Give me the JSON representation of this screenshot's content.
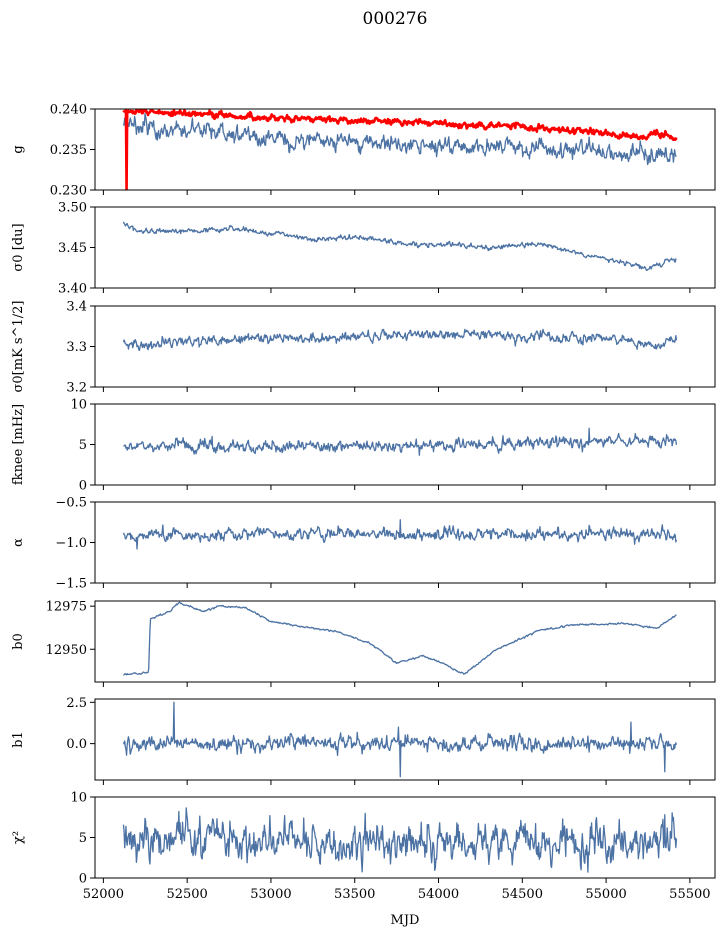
{
  "figure": {
    "title": "000276",
    "xlabel": "MJD",
    "x_range": [
      51950,
      55650
    ],
    "x_ticks": [
      52000,
      52500,
      53000,
      53500,
      54000,
      54500,
      55000,
      55500
    ],
    "line_color": "#4c72a4",
    "secondary_color": "#ff0000"
  },
  "chart_data": [
    {
      "id": "g",
      "type": "line",
      "ylabel": "g",
      "ylim": [
        0.23,
        0.24
      ],
      "yticks": [
        0.23,
        0.235,
        0.24
      ],
      "ytick_labels": [
        "0.230",
        "0.235",
        "0.240"
      ],
      "x_start": 52120,
      "x_end": 55420,
      "series": [
        {
          "color": "#4c72a4",
          "width": 1.3,
          "noise": 0.0005,
          "anchors": [
            [
              52120,
              0.2382
            ],
            [
              52300,
              0.2375
            ],
            [
              52600,
              0.2373
            ],
            [
              52900,
              0.2366
            ],
            [
              53200,
              0.236
            ],
            [
              53500,
              0.236
            ],
            [
              53800,
              0.2355
            ],
            [
              54100,
              0.2353
            ],
            [
              54400,
              0.2353
            ],
            [
              54700,
              0.235
            ],
            [
              55000,
              0.2347
            ],
            [
              55200,
              0.2343
            ],
            [
              55420,
              0.2345
            ]
          ],
          "spikes": []
        },
        {
          "color": "#ff0000",
          "width": 2.6,
          "noise": 0.00018,
          "anchors": [
            [
              52120,
              0.2398
            ],
            [
              52400,
              0.2395
            ],
            [
              52700,
              0.2393
            ],
            [
              53000,
              0.2388
            ],
            [
              53300,
              0.2388
            ],
            [
              53600,
              0.2385
            ],
            [
              53900,
              0.2383
            ],
            [
              54200,
              0.238
            ],
            [
              54500,
              0.2378
            ],
            [
              54800,
              0.2373
            ],
            [
              55000,
              0.237
            ],
            [
              55200,
              0.2365
            ],
            [
              55300,
              0.2372
            ],
            [
              55420,
              0.2363
            ]
          ],
          "spikes": [
            [
              52140,
              0.2301
            ]
          ]
        }
      ]
    },
    {
      "id": "sigma0_du",
      "type": "line",
      "ylabel": "σ0 [du]",
      "ylim": [
        3.4,
        3.5
      ],
      "yticks": [
        3.4,
        3.45,
        3.5
      ],
      "ytick_labels": [
        "3.40",
        "3.45",
        "3.50"
      ],
      "x_start": 52120,
      "x_end": 55420,
      "series": [
        {
          "color": "#4c72a4",
          "width": 1.3,
          "noise": 0.0015,
          "anchors": [
            [
              52120,
              3.482
            ],
            [
              52200,
              3.47
            ],
            [
              52500,
              3.47
            ],
            [
              52800,
              3.473
            ],
            [
              53000,
              3.467
            ],
            [
              53300,
              3.46
            ],
            [
              53500,
              3.463
            ],
            [
              53800,
              3.455
            ],
            [
              54100,
              3.453
            ],
            [
              54300,
              3.45
            ],
            [
              54600,
              3.455
            ],
            [
              54800,
              3.445
            ],
            [
              55100,
              3.432
            ],
            [
              55250,
              3.425
            ],
            [
              55420,
              3.437
            ]
          ],
          "spikes": []
        }
      ]
    },
    {
      "id": "sigma0_mk",
      "type": "line",
      "ylabel": "σ0[mK s^1/2]",
      "ylim": [
        3.2,
        3.4
      ],
      "yticks": [
        3.2,
        3.3,
        3.4
      ],
      "ytick_labels": [
        "3.2",
        "3.3",
        "3.4"
      ],
      "x_start": 52120,
      "x_end": 55420,
      "series": [
        {
          "color": "#4c72a4",
          "width": 1.3,
          "noise": 0.006,
          "anchors": [
            [
              52120,
              3.31
            ],
            [
              52200,
              3.305
            ],
            [
              52600,
              3.315
            ],
            [
              53000,
              3.32
            ],
            [
              53500,
              3.325
            ],
            [
              54000,
              3.33
            ],
            [
              54500,
              3.325
            ],
            [
              55000,
              3.32
            ],
            [
              55300,
              3.3
            ],
            [
              55420,
              3.32
            ]
          ],
          "spikes": []
        }
      ]
    },
    {
      "id": "fknee",
      "type": "line",
      "ylabel": "fknee [mHz]",
      "ylim": [
        0,
        10
      ],
      "yticks": [
        0,
        5,
        10
      ],
      "ytick_labels": [
        "0",
        "5",
        "10"
      ],
      "x_start": 52120,
      "x_end": 55420,
      "series": [
        {
          "color": "#4c72a4",
          "width": 1.3,
          "noise": 0.35,
          "anchors": [
            [
              52120,
              4.7
            ],
            [
              53000,
              4.7
            ],
            [
              54000,
              4.8
            ],
            [
              54500,
              5.2
            ],
            [
              55000,
              5.5
            ],
            [
              55420,
              5.5
            ]
          ],
          "spikes": [
            [
              54900,
              7.0
            ],
            [
              52650,
              6.0
            ]
          ]
        }
      ]
    },
    {
      "id": "alpha",
      "type": "line",
      "ylabel": "α",
      "ylim": [
        -1.5,
        -0.5
      ],
      "yticks": [
        -1.5,
        -1.0,
        -0.5
      ],
      "ytick_labels": [
        "−1.5",
        "−1.0",
        "−0.5"
      ],
      "x_start": 52120,
      "x_end": 55420,
      "series": [
        {
          "color": "#4c72a4",
          "width": 1.3,
          "noise": 0.035,
          "anchors": [
            [
              52120,
              -0.9
            ],
            [
              55420,
              -0.9
            ]
          ],
          "spikes": [
            [
              53770,
              -0.72
            ],
            [
              52200,
              -1.08
            ]
          ]
        }
      ]
    },
    {
      "id": "b0",
      "type": "line",
      "ylabel": "b0",
      "ylim": [
        12931,
        12978
      ],
      "yticks": [
        12950,
        12975
      ],
      "ytick_labels": [
        "12950",
        "12975"
      ],
      "x_start": 52120,
      "x_end": 55420,
      "series": [
        {
          "color": "#4c72a4",
          "width": 1.3,
          "noise": 0.25,
          "anchors": [
            [
              52120,
              12935
            ],
            [
              52270,
              12936.5
            ],
            [
              52280,
              12968
            ],
            [
              52400,
              12972
            ],
            [
              52450,
              12977
            ],
            [
              52600,
              12972
            ],
            [
              52700,
              12975
            ],
            [
              52850,
              12974
            ],
            [
              53000,
              12966
            ],
            [
              53200,
              12963
            ],
            [
              53400,
              12960
            ],
            [
              53600,
              12953
            ],
            [
              53750,
              12942
            ],
            [
              53900,
              12946
            ],
            [
              54000,
              12943
            ],
            [
              54150,
              12935.5
            ],
            [
              54350,
              12950
            ],
            [
              54600,
              12961
            ],
            [
              54800,
              12964
            ],
            [
              55100,
              12965
            ],
            [
              55300,
              12962
            ],
            [
              55420,
              12970
            ]
          ],
          "spikes": []
        }
      ]
    },
    {
      "id": "b1",
      "type": "line",
      "ylabel": "b1",
      "ylim": [
        -2.2,
        2.7
      ],
      "yticks": [
        0.0,
        2.5
      ],
      "ytick_labels": [
        "0.0",
        "2.5"
      ],
      "x_start": 52120,
      "x_end": 55420,
      "series": [
        {
          "color": "#4c72a4",
          "width": 1.3,
          "noise": 0.22,
          "anchors": [
            [
              52120,
              0.0
            ],
            [
              55420,
              0.0
            ]
          ],
          "spikes": [
            [
              52420,
              2.5
            ],
            [
              53770,
              -2.0
            ],
            [
              53760,
              1.0
            ],
            [
              55150,
              1.3
            ],
            [
              55350,
              -1.7
            ],
            [
              52140,
              -0.7
            ]
          ]
        }
      ]
    },
    {
      "id": "chi2",
      "type": "line",
      "ylabel": "χ²",
      "ylim": [
        0,
        10
      ],
      "yticks": [
        0,
        5,
        10
      ],
      "ytick_labels": [
        "0",
        "5",
        "10"
      ],
      "x_start": 52120,
      "x_end": 55420,
      "series": [
        {
          "color": "#4c72a4",
          "width": 1.3,
          "noise": 1.1,
          "anchors": [
            [
              52120,
              4.5
            ],
            [
              52500,
              5.0
            ],
            [
              53000,
              4.5
            ],
            [
              53500,
              4.2
            ],
            [
              54000,
              4.5
            ],
            [
              54500,
              4.5
            ],
            [
              55000,
              4.5
            ],
            [
              55420,
              5.0
            ]
          ],
          "spikes": [
            [
              52450,
              8.2
            ],
            [
              54850,
              1.0
            ],
            [
              55350,
              7.8
            ]
          ]
        }
      ]
    }
  ]
}
